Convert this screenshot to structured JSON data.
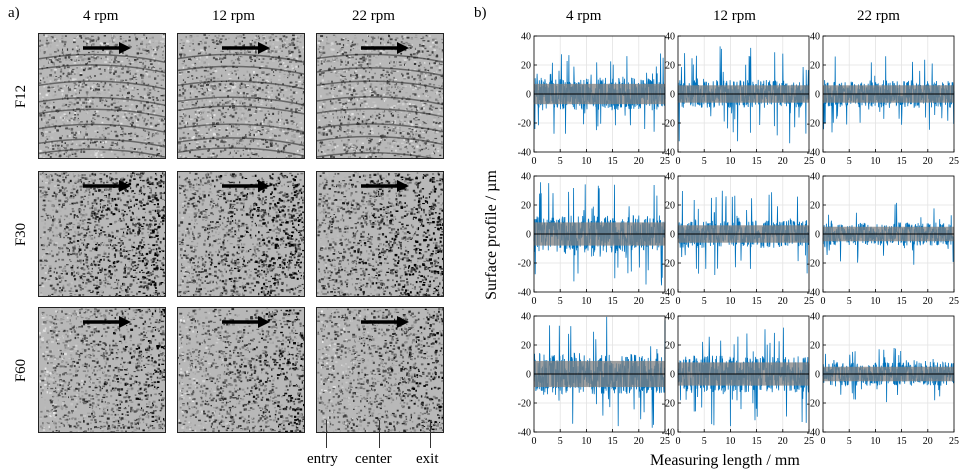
{
  "panel_a": {
    "tag": "a)",
    "columns": [
      "4 rpm",
      "12 rpm",
      "22 rpm"
    ],
    "rows": [
      "F12",
      "F30",
      "F60"
    ],
    "bottom_labels": [
      "entry",
      "center",
      "exit"
    ]
  },
  "panel_b": {
    "tag": "b)",
    "columns": [
      "4 rpm",
      "12 rpm",
      "22 rpm"
    ]
  },
  "chart_data": {
    "type": "line",
    "title": "",
    "xlabel": "Measuring length / mm",
    "ylabel": "Surface profile / µm",
    "xlim": [
      0,
      25
    ],
    "ylim": [
      -40,
      40
    ],
    "x_ticks": [
      0,
      5,
      10,
      15,
      20,
      25
    ],
    "y_ticks": [
      -40,
      -20,
      0,
      20,
      40
    ],
    "grid": true,
    "line_color": "#0072BD",
    "band_color": "#808080",
    "subplots": [
      {
        "row": "F12",
        "column": "4 rpm",
        "band": [
          -7,
          7
        ],
        "amplitude": 28
      },
      {
        "row": "F12",
        "column": "12 rpm",
        "band": [
          -6,
          6
        ],
        "amplitude": 34
      },
      {
        "row": "F12",
        "column": "22 rpm",
        "band": [
          -6,
          6
        ],
        "amplitude": 27
      },
      {
        "row": "F30",
        "column": "4 rpm",
        "band": [
          -8,
          8
        ],
        "amplitude": 36
      },
      {
        "row": "F30",
        "column": "12 rpm",
        "band": [
          -6,
          6
        ],
        "amplitude": 30
      },
      {
        "row": "F30",
        "column": "22 rpm",
        "band": [
          -5,
          5
        ],
        "amplitude": 22
      },
      {
        "row": "F60",
        "column": "4 rpm",
        "band": [
          -9,
          9
        ],
        "amplitude": 40
      },
      {
        "row": "F60",
        "column": "12 rpm",
        "band": [
          -8,
          8
        ],
        "amplitude": 36
      },
      {
        "row": "F60",
        "column": "22 rpm",
        "band": [
          -5,
          5
        ],
        "amplitude": 20
      }
    ]
  }
}
